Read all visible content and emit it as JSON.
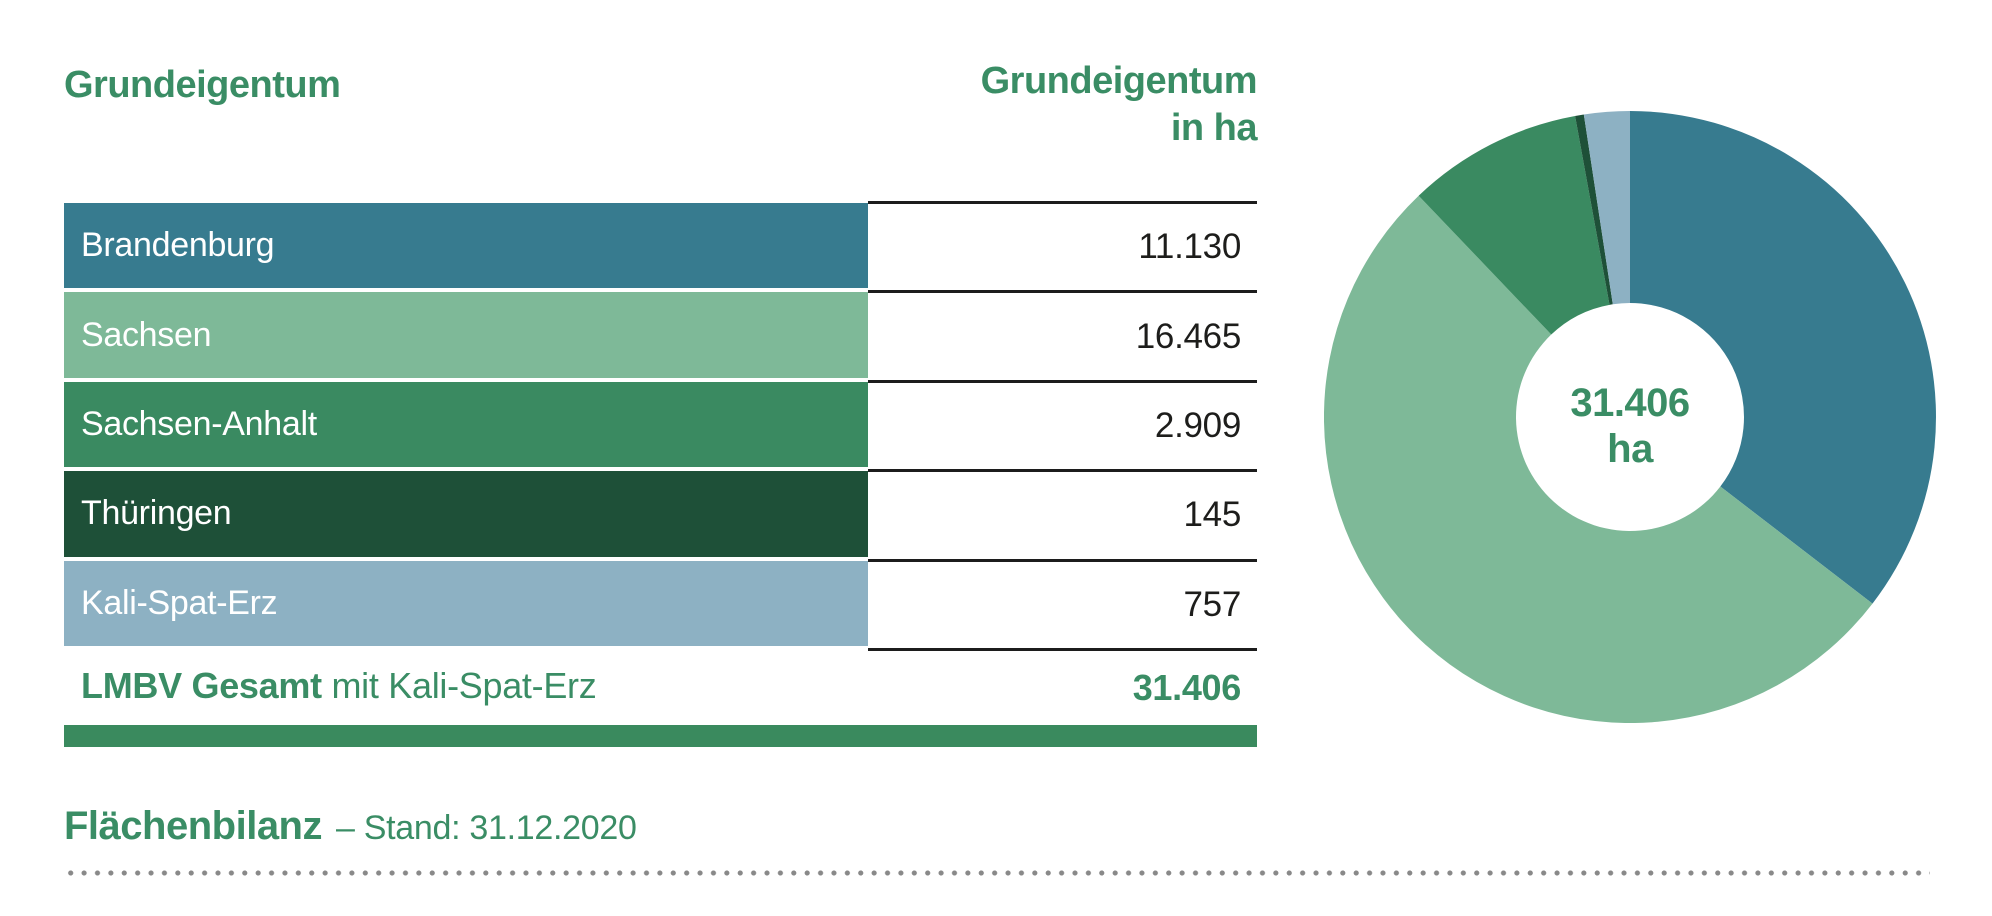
{
  "title": "Grundeigentum",
  "column_header": {
    "line1": "Grundeigentum",
    "line2": "in ha"
  },
  "table": {
    "rows": [
      {
        "label": "Brandenburg",
        "value": "11.130",
        "color": "#377b8f"
      },
      {
        "label": "Sachsen",
        "value": "16.465",
        "color": "#7eb998"
      },
      {
        "label": "Sachsen-Anhalt",
        "value": "2.909",
        "color": "#3a8a61"
      },
      {
        "label": "Thüringen",
        "value": "145",
        "color": "#1e5038"
      },
      {
        "label": "Kali-Spat-Erz",
        "value": "757",
        "color": "#8db1c3"
      }
    ],
    "total": {
      "label_bold": "LMBV Gesamt",
      "label_rest": " mit Kali-Spat-Erz",
      "value": "31.406"
    }
  },
  "donut_center": {
    "line1": "31.406",
    "line2": "ha"
  },
  "footer": {
    "title": "Flächenbilanz",
    "subtitle": "– Stand: 31.12.2020"
  },
  "colors": {
    "accent_green": "#3a8d65",
    "bar_green": "#3a8a5e",
    "value_text": "#1d1d1b",
    "row_border": "#1c1c1c",
    "dot_gray": "#898989"
  },
  "chart_data": {
    "type": "pie",
    "subtype": "donut",
    "title": "Grundeigentum in ha",
    "categories": [
      "Brandenburg",
      "Sachsen",
      "Sachsen-Anhalt",
      "Thüringen",
      "Kali-Spat-Erz"
    ],
    "values": [
      11130,
      16465,
      2909,
      145,
      757
    ],
    "value_labels": [
      "11.130",
      "16.465",
      "2.909",
      "145",
      "757"
    ],
    "total": 31406,
    "total_label": "31.406 ha",
    "colors": [
      "#377b8f",
      "#7eb998",
      "#3a8a61",
      "#1e5038",
      "#8db1c3"
    ],
    "start_angle_deg": 0,
    "direction": "clockwise",
    "inner_radius_ratio": 0.373,
    "center_label": "31.406 ha",
    "legend_position": "table-left"
  }
}
